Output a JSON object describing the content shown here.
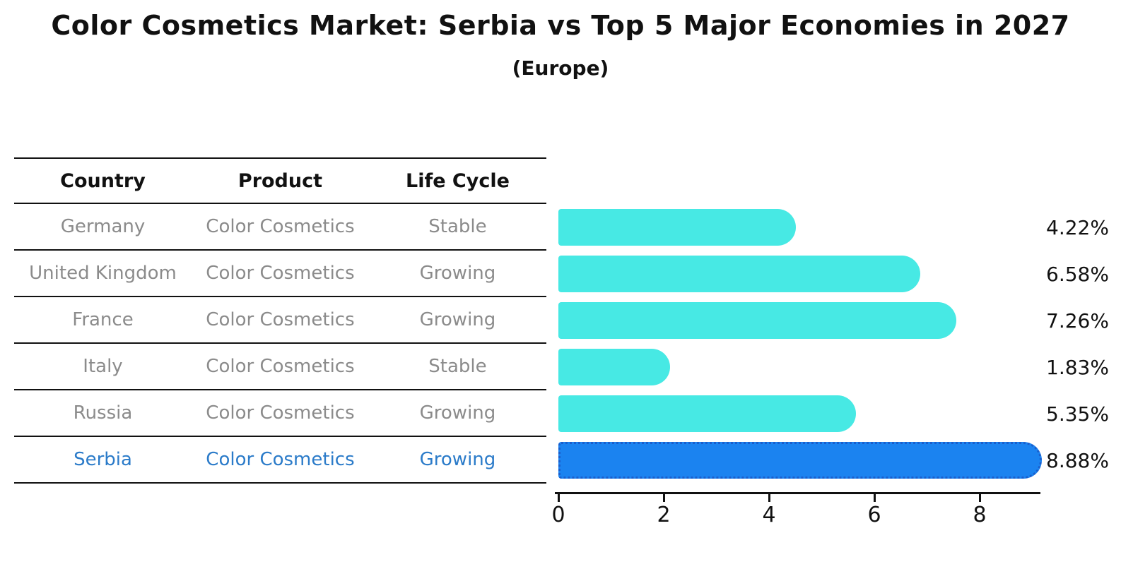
{
  "title": "Color Cosmetics Market: Serbia vs Top 5 Major Economies in 2027",
  "subtitle": "(Europe)",
  "table": {
    "headers": [
      "Country",
      "Product",
      "Life Cycle"
    ],
    "rows": [
      {
        "country": "Germany",
        "product": "Color Cosmetics",
        "life_cycle": "Stable",
        "highlight": false
      },
      {
        "country": "United Kingdom",
        "product": "Color Cosmetics",
        "life_cycle": "Growing",
        "highlight": false
      },
      {
        "country": "France",
        "product": "Color Cosmetics",
        "life_cycle": "Growing",
        "highlight": false
      },
      {
        "country": "Italy",
        "product": "Color Cosmetics",
        "life_cycle": "Stable",
        "highlight": false
      },
      {
        "country": "Russia",
        "product": "Color Cosmetics",
        "life_cycle": "Growing",
        "highlight": false
      },
      {
        "country": "Serbia",
        "product": "Color Cosmetics",
        "life_cycle": "Growing",
        "highlight": true
      }
    ]
  },
  "chart_data": {
    "type": "bar",
    "orientation": "horizontal",
    "title": "Color Cosmetics Market: Serbia vs Top 5 Major Economies in 2027",
    "subtitle": "(Europe)",
    "categories": [
      "Germany",
      "United Kingdom",
      "France",
      "Italy",
      "Russia",
      "Serbia"
    ],
    "values": [
      4.22,
      6.58,
      7.26,
      1.83,
      5.35,
      8.88
    ],
    "value_labels": [
      "4.22%",
      "6.58%",
      "7.26%",
      "1.83%",
      "5.35%",
      "8.88%"
    ],
    "x_ticks": [
      0,
      2,
      4,
      6,
      8
    ],
    "xlim": [
      0,
      9.3
    ],
    "grid": false,
    "legend": "none",
    "bar_color": "#47E9E4",
    "highlight_bar_color": "#1B83F0",
    "highlight_border_color": "#1a5ecc",
    "highlight_index": 5
  },
  "colors": {
    "background": "#ffffff",
    "title_text": "#111111",
    "row_text": "#8b8b8b",
    "highlight_text": "#2b7bc9",
    "axis": "#111111"
  }
}
